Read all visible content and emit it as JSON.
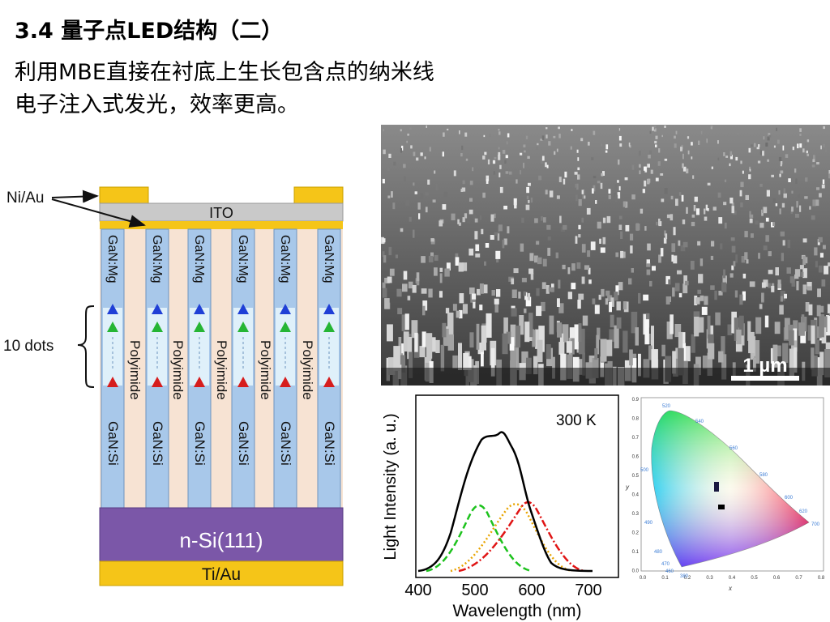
{
  "slide": {
    "title": "3.4 量子点LED结构（二）",
    "subtitle_line1": "利用MBE直接在衬底上生长包含点的纳米线",
    "subtitle_line2": "电子注入式发光，效率更高。"
  },
  "device_diagram": {
    "contact_label": "Ni/Au",
    "ito_label": "ITO",
    "p_layer": "GaN:Mg",
    "dots_label": "10 dots",
    "fill_label": "Polyimide",
    "n_layer": "GaN:Si",
    "substrate_label": "n-Si(111)",
    "bottom_contact": "Ti/Au",
    "colors": {
      "gold": "#f5c518",
      "ito": "#c9c9c9",
      "nanowire": "#a8c8ea",
      "polyimide": "#f7e3d3",
      "substrate": "#7b57a8",
      "dot_blue": "#1f3fd6",
      "dot_green": "#25b534",
      "dot_red": "#d61d1d"
    }
  },
  "sem_image": {
    "scale_label": "1 µm"
  },
  "spectrum": {
    "temperature_label": "300 K",
    "xlabel": "Wavelength (nm)",
    "ylabel": "Light Intensity (a. u.)",
    "x_ticks": [
      "400",
      "500",
      "600",
      "700"
    ]
  },
  "cie_diagram": {
    "y_ticks": [
      "0.9",
      "0.8",
      "0.7",
      "0.6",
      "0.5",
      "0.4",
      "0.3",
      "0.2",
      "0.1",
      "0.0"
    ],
    "x_ticks": [
      "0.0",
      "0.1",
      "0.2",
      "0.3",
      "0.4",
      "0.5",
      "0.6",
      "0.7",
      "0.8"
    ],
    "wavelength_labels": [
      "520",
      "540",
      "560",
      "580",
      "600",
      "620",
      "700",
      "500",
      "490",
      "480",
      "470",
      "460",
      "380"
    ],
    "xlabel": "x",
    "ylabel": "y"
  }
}
